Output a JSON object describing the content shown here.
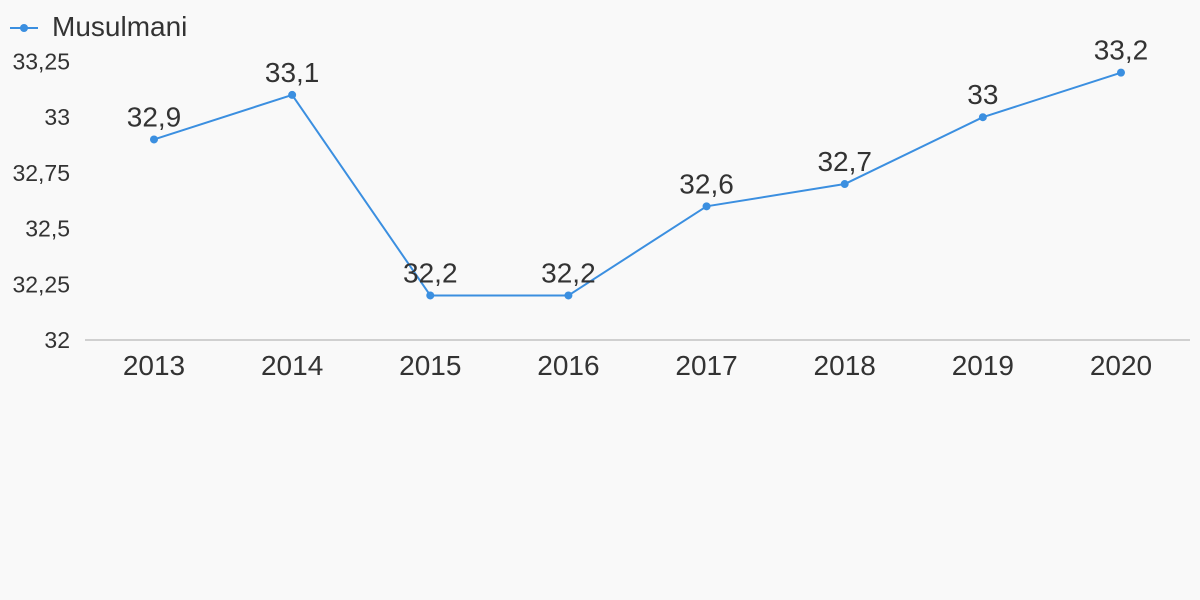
{
  "chart_data": {
    "type": "line",
    "categories": [
      "2013",
      "2014",
      "2015",
      "2016",
      "2017",
      "2018",
      "2019",
      "2020"
    ],
    "series": [
      {
        "name": "Musulmani",
        "values": [
          32.9,
          33.1,
          32.2,
          32.2,
          32.6,
          32.7,
          33.0,
          33.2
        ],
        "labels": [
          "32,9",
          "33,1",
          "32,2",
          "32,2",
          "32,6",
          "32,7",
          "33",
          "33,2"
        ],
        "color": "#3b8fe0"
      }
    ],
    "y_ticks": [
      {
        "value": 32,
        "label": "32"
      },
      {
        "value": 32.25,
        "label": "32,25"
      },
      {
        "value": 32.5,
        "label": "32,5"
      },
      {
        "value": 32.75,
        "label": "32,75"
      },
      {
        "value": 33,
        "label": "33"
      },
      {
        "value": 33.25,
        "label": "33,25"
      }
    ],
    "ylim": [
      32,
      33.25
    ],
    "title": "",
    "xlabel": "",
    "ylabel": "",
    "legend": "top-left",
    "grid": false,
    "colors": {
      "background": "#f9f9f9",
      "axis": "#d0d0d0",
      "text": "#333333"
    }
  }
}
